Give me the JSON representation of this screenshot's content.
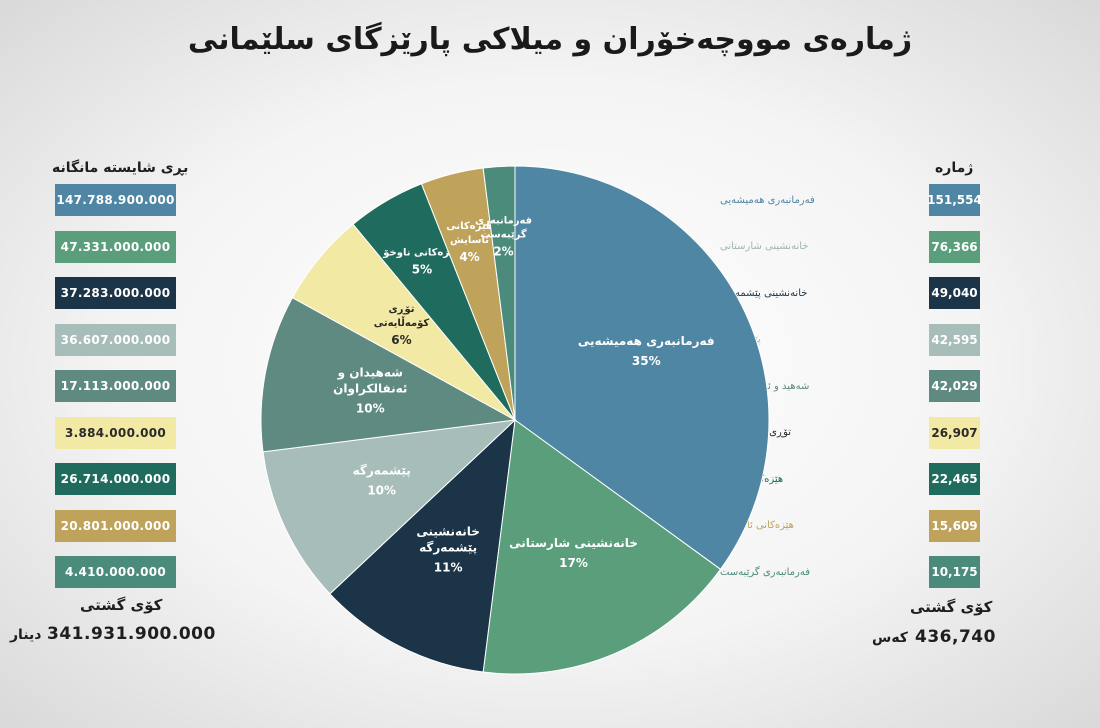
{
  "title": "ژمارەی مووچەخۆران و میلاکی پارێزگای سلێمانی",
  "left_header": "بڕی شایستە مانگانە",
  "right_header": "ژمارە",
  "left_total_label": "کۆی گشتی",
  "left_total_value": "341.931.900.000",
  "left_total_unit": "دینار",
  "right_total_label": "کۆی گشتی",
  "right_total_value": "436,740",
  "right_total_unit": "کەس",
  "colors": {
    "blue": "#4f86a3",
    "green": "#5a9e7c",
    "navy": "#1b3447",
    "pale_teal": "#a6bdb9",
    "slate": "#5f8a82",
    "yellow": "#f2e9a4",
    "dark_teal": "#1f6c5e",
    "gold": "#c0a35a",
    "teal": "#4a8b7c"
  },
  "chart_data": {
    "type": "pie",
    "title": "ژمارەی مووچەخۆران و میلاکی پارێزگای سلێمانی",
    "slices": [
      {
        "label": "فەرمانبەری هەمیشەیی",
        "label_lines": [
          "فەرمانبەری هەمیشەیی"
        ],
        "percent": 35,
        "percent_text": "35%",
        "count": "151,554",
        "amount": "147.788.900.000",
        "color": "#4f86a3",
        "text_color": "#ffffff",
        "count_label_color": "#4f86a3"
      },
      {
        "label": "خانەنشینی شارستانی",
        "label_lines": [
          "خانەنشینی شارستانی"
        ],
        "percent": 17,
        "percent_text": "17%",
        "count": "76,366",
        "amount": "47.331.000.000",
        "color": "#5a9e7c",
        "text_color": "#ffffff",
        "count_label_color": "#9fb8a8"
      },
      {
        "label": "خانەنشینی پێشمەرگە",
        "label_lines": [
          "خانەنشینی",
          "پێشمەرگە"
        ],
        "percent": 11,
        "percent_text": "11%",
        "count": "49,040",
        "amount": "37.283.000.000",
        "color": "#1b3447",
        "text_color": "#ffffff",
        "count_label_color": "#1b3447"
      },
      {
        "label": "پێشمەرگە",
        "label_lines": [
          "پێشمەرگە"
        ],
        "percent": 10,
        "percent_text": "10%",
        "count": "42,595",
        "amount": "36.607.000.000",
        "color": "#a6bdb9",
        "text_color": "#ffffff",
        "count_label_color": "#a6bdb9"
      },
      {
        "label": "شەهیدان و ئەنفالکراوان",
        "label_lines": [
          "شەهیدان و",
          "ئەنفالکراوان"
        ],
        "percent": 10,
        "percent_text": "10%",
        "count": "42,029",
        "amount": "17.113.000.000",
        "color": "#5f8a82",
        "text_color": "#ffffff",
        "count_label_color": "#5f8a82",
        "count_label": "شەهید و ئەنفالکراوان"
      },
      {
        "label": "تۆڕی کۆمەڵایەتی",
        "label_lines": [
          "تۆڕی",
          "کۆمەڵایەتی"
        ],
        "percent": 6,
        "percent_text": "6%",
        "count": "26,907",
        "amount": "3.884.000.000",
        "color": "#f2e9a4",
        "text_color": "#2a2a2a",
        "count_label_color": "#2a2a2a"
      },
      {
        "label": "هێزەکانی ناوخۆ",
        "label_lines": [
          "هێزەکانی ناوخۆ"
        ],
        "percent": 5,
        "percent_text": "5%",
        "count": "22,465",
        "amount": "26.714.000.000",
        "color": "#1f6c5e",
        "text_color": "#ffffff",
        "count_label_color": "#1f6c5e"
      },
      {
        "label": "هێزەکانی ئاسایش",
        "label_lines": [
          "هێزەکانی",
          "ئاسایش"
        ],
        "percent": 4,
        "percent_text": "4%",
        "count": "15,609",
        "amount": "20.801.000.000",
        "color": "#c0a35a",
        "text_color": "#ffffff",
        "count_label_color": "#c0a35a"
      },
      {
        "label": "فەرمانبەری گرێبەست",
        "label_lines": [
          "فەرمانبەری",
          "گرێبەست"
        ],
        "percent": 2,
        "percent_text": "2%",
        "count": "10,175",
        "amount": "4.410.000.000",
        "color": "#4a8b7c",
        "text_color": "#ffffff",
        "count_label_color": "#4a8b7c"
      }
    ]
  }
}
